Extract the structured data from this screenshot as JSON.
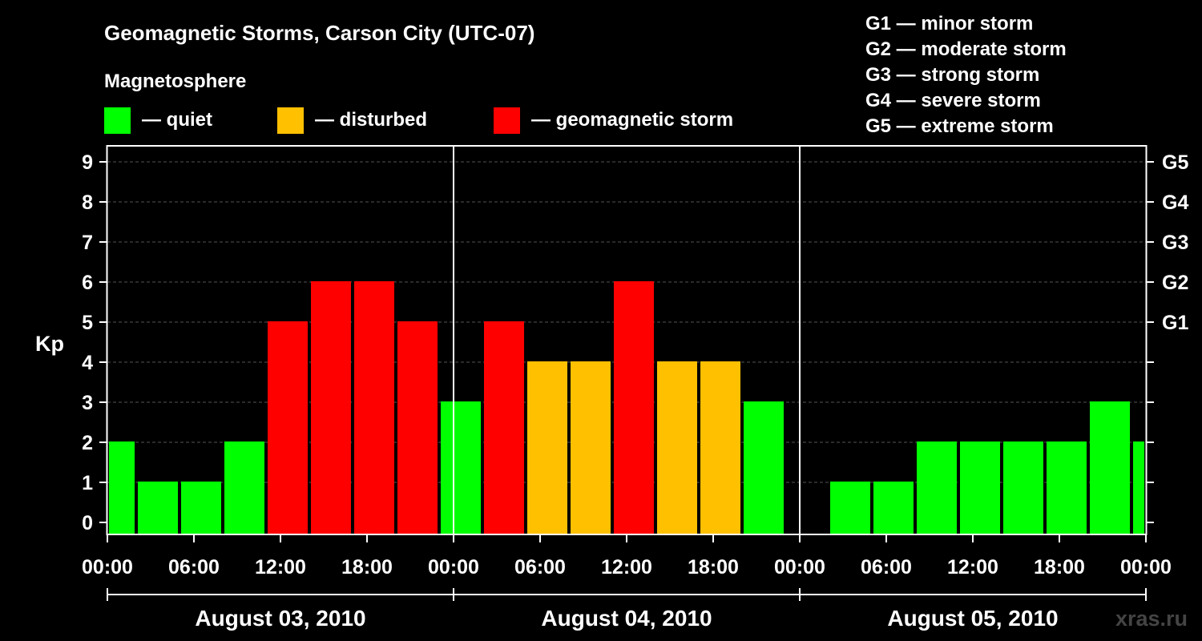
{
  "chart_data": {
    "type": "bar",
    "title": "Geomagnetic Storms, Carson City (UTC-07)",
    "ylabel": "Kp",
    "ylim": [
      0,
      9
    ],
    "y_ticks": [
      "0",
      "1",
      "2",
      "3",
      "4",
      "5",
      "6",
      "7",
      "8",
      "9"
    ],
    "x_tick_labels": [
      "00:00",
      "06:00",
      "12:00",
      "18:00",
      "00:00",
      "06:00",
      "12:00",
      "18:00",
      "00:00",
      "06:00",
      "12:00",
      "18:00",
      "00:00"
    ],
    "x_range_hours": [
      0,
      72
    ],
    "days": [
      "August 03, 2010",
      "August 04, 2010",
      "August 05, 2010"
    ],
    "magnetosphere_legend": {
      "title": "Magnetosphere",
      "items": [
        {
          "label": "— quiet",
          "color": "#00ff00"
        },
        {
          "label": "— disturbed",
          "color": "#ffc000"
        },
        {
          "label": "— geomagnetic storm",
          "color": "#ff0000"
        }
      ]
    },
    "g_levels": [
      {
        "label": "G1",
        "kp": 5,
        "description": "G1 — minor storm"
      },
      {
        "label": "G2",
        "kp": 6,
        "description": "G2 — moderate storm"
      },
      {
        "label": "G3",
        "kp": 7,
        "description": "G3 — strong storm"
      },
      {
        "label": "G4",
        "kp": 8,
        "description": "G4 — severe storm"
      },
      {
        "label": "G5",
        "kp": 9,
        "description": "G5 — extreme storm"
      }
    ],
    "bars": [
      {
        "start_hour": 0,
        "end_hour": 2,
        "kp": 2,
        "color": "#00ff00"
      },
      {
        "start_hour": 2,
        "end_hour": 5,
        "kp": 1,
        "color": "#00ff00"
      },
      {
        "start_hour": 5,
        "end_hour": 8,
        "kp": 1,
        "color": "#00ff00"
      },
      {
        "start_hour": 8,
        "end_hour": 11,
        "kp": 2,
        "color": "#00ff00"
      },
      {
        "start_hour": 11,
        "end_hour": 14,
        "kp": 5,
        "color": "#ff0000"
      },
      {
        "start_hour": 14,
        "end_hour": 17,
        "kp": 6,
        "color": "#ff0000"
      },
      {
        "start_hour": 17,
        "end_hour": 20,
        "kp": 6,
        "color": "#ff0000"
      },
      {
        "start_hour": 20,
        "end_hour": 23,
        "kp": 5,
        "color": "#ff0000"
      },
      {
        "start_hour": 23,
        "end_hour": 26,
        "kp": 3,
        "color": "#00ff00"
      },
      {
        "start_hour": 26,
        "end_hour": 29,
        "kp": 5,
        "color": "#ff0000"
      },
      {
        "start_hour": 29,
        "end_hour": 32,
        "kp": 4,
        "color": "#ffc000"
      },
      {
        "start_hour": 32,
        "end_hour": 35,
        "kp": 4,
        "color": "#ffc000"
      },
      {
        "start_hour": 35,
        "end_hour": 38,
        "kp": 6,
        "color": "#ff0000"
      },
      {
        "start_hour": 38,
        "end_hour": 41,
        "kp": 4,
        "color": "#ffc000"
      },
      {
        "start_hour": 41,
        "end_hour": 44,
        "kp": 4,
        "color": "#ffc000"
      },
      {
        "start_hour": 44,
        "end_hour": 47,
        "kp": 3,
        "color": "#00ff00"
      },
      {
        "start_hour": 50,
        "end_hour": 53,
        "kp": 1,
        "color": "#00ff00"
      },
      {
        "start_hour": 53,
        "end_hour": 56,
        "kp": 1,
        "color": "#00ff00"
      },
      {
        "start_hour": 56,
        "end_hour": 59,
        "kp": 2,
        "color": "#00ff00"
      },
      {
        "start_hour": 59,
        "end_hour": 62,
        "kp": 2,
        "color": "#00ff00"
      },
      {
        "start_hour": 62,
        "end_hour": 65,
        "kp": 2,
        "color": "#00ff00"
      },
      {
        "start_hour": 65,
        "end_hour": 68,
        "kp": 2,
        "color": "#00ff00"
      },
      {
        "start_hour": 68,
        "end_hour": 71,
        "kp": 3,
        "color": "#00ff00"
      },
      {
        "start_hour": 71,
        "end_hour": 72,
        "kp": 2,
        "color": "#00ff00"
      }
    ],
    "grid": "dashed horizontal at each Kp level",
    "credit": "xras.ru"
  }
}
